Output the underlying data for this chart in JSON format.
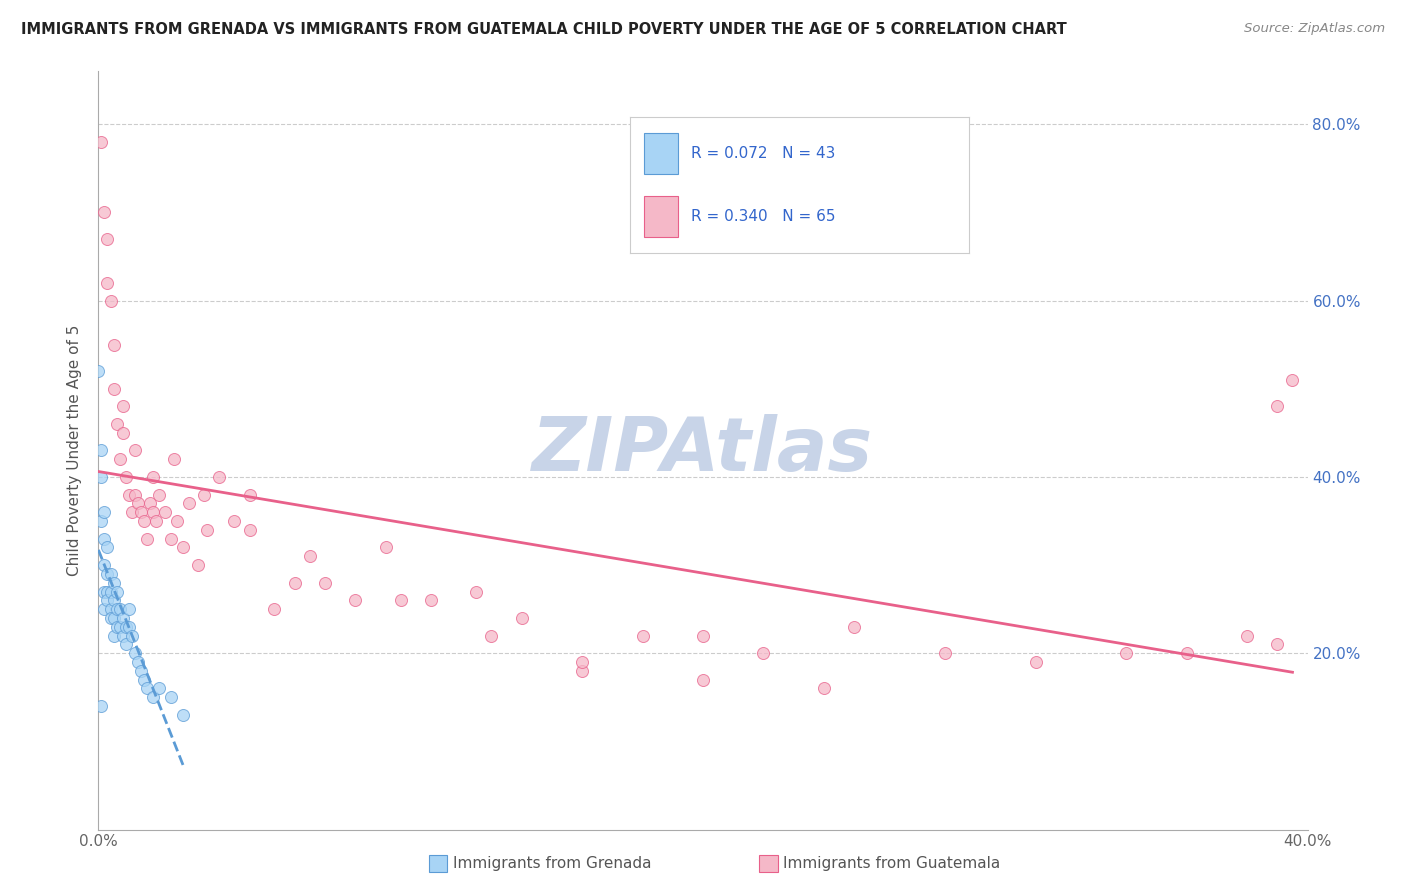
{
  "title": "IMMIGRANTS FROM GRENADA VS IMMIGRANTS FROM GUATEMALA CHILD POVERTY UNDER THE AGE OF 5 CORRELATION CHART",
  "source": "Source: ZipAtlas.com",
  "ylabel_label": "Child Poverty Under the Age of 5",
  "color_grenada": "#a8d4f5",
  "color_guatemala": "#f5b8c8",
  "trendline_grenada_color": "#5b9bd5",
  "trendline_guatemala_color": "#e8608a",
  "watermark_color": "#c8d4e8",
  "background_color": "#ffffff",
  "xlim": [
    0.0,
    0.4
  ],
  "ylim": [
    0.0,
    0.86
  ],
  "yticks": [
    0.2,
    0.4,
    0.6,
    0.8
  ],
  "ytick_labels": [
    "20.0%",
    "40.0%",
    "60.0%",
    "80.0%"
  ],
  "xtick_positions": [
    0.0,
    0.05,
    0.1,
    0.15,
    0.2,
    0.25,
    0.3,
    0.35,
    0.4
  ],
  "xtick_labels": [
    "0.0%",
    "",
    "",
    "",
    "",
    "",
    "",
    "",
    "40.0%"
  ],
  "grenada_x": [
    0.0,
    0.001,
    0.001,
    0.001,
    0.001,
    0.002,
    0.002,
    0.002,
    0.002,
    0.002,
    0.003,
    0.003,
    0.003,
    0.003,
    0.004,
    0.004,
    0.004,
    0.004,
    0.005,
    0.005,
    0.005,
    0.005,
    0.006,
    0.006,
    0.006,
    0.007,
    0.007,
    0.008,
    0.008,
    0.009,
    0.009,
    0.01,
    0.01,
    0.011,
    0.012,
    0.013,
    0.014,
    0.015,
    0.016,
    0.018,
    0.02,
    0.024,
    0.028
  ],
  "grenada_y": [
    0.52,
    0.43,
    0.4,
    0.35,
    0.14,
    0.36,
    0.33,
    0.3,
    0.27,
    0.25,
    0.32,
    0.29,
    0.27,
    0.26,
    0.29,
    0.27,
    0.25,
    0.24,
    0.28,
    0.26,
    0.24,
    0.22,
    0.27,
    0.25,
    0.23,
    0.25,
    0.23,
    0.24,
    0.22,
    0.23,
    0.21,
    0.25,
    0.23,
    0.22,
    0.2,
    0.19,
    0.18,
    0.17,
    0.16,
    0.15,
    0.16,
    0.15,
    0.13
  ],
  "guatemala_x": [
    0.001,
    0.002,
    0.003,
    0.004,
    0.005,
    0.006,
    0.007,
    0.008,
    0.009,
    0.01,
    0.011,
    0.012,
    0.013,
    0.014,
    0.015,
    0.016,
    0.017,
    0.018,
    0.019,
    0.02,
    0.022,
    0.024,
    0.026,
    0.028,
    0.03,
    0.033,
    0.036,
    0.04,
    0.045,
    0.05,
    0.058,
    0.065,
    0.075,
    0.085,
    0.095,
    0.11,
    0.125,
    0.14,
    0.16,
    0.18,
    0.2,
    0.22,
    0.25,
    0.28,
    0.31,
    0.34,
    0.36,
    0.38,
    0.39,
    0.395,
    0.003,
    0.005,
    0.008,
    0.012,
    0.018,
    0.025,
    0.035,
    0.05,
    0.07,
    0.1,
    0.13,
    0.16,
    0.2,
    0.24,
    0.39
  ],
  "guatemala_y": [
    0.78,
    0.7,
    0.67,
    0.6,
    0.55,
    0.46,
    0.42,
    0.45,
    0.4,
    0.38,
    0.36,
    0.38,
    0.37,
    0.36,
    0.35,
    0.33,
    0.37,
    0.36,
    0.35,
    0.38,
    0.36,
    0.33,
    0.35,
    0.32,
    0.37,
    0.3,
    0.34,
    0.4,
    0.35,
    0.38,
    0.25,
    0.28,
    0.28,
    0.26,
    0.32,
    0.26,
    0.27,
    0.24,
    0.18,
    0.22,
    0.22,
    0.2,
    0.23,
    0.2,
    0.19,
    0.2,
    0.2,
    0.22,
    0.21,
    0.51,
    0.62,
    0.5,
    0.48,
    0.43,
    0.4,
    0.42,
    0.38,
    0.34,
    0.31,
    0.26,
    0.22,
    0.19,
    0.17,
    0.16,
    0.48
  ]
}
